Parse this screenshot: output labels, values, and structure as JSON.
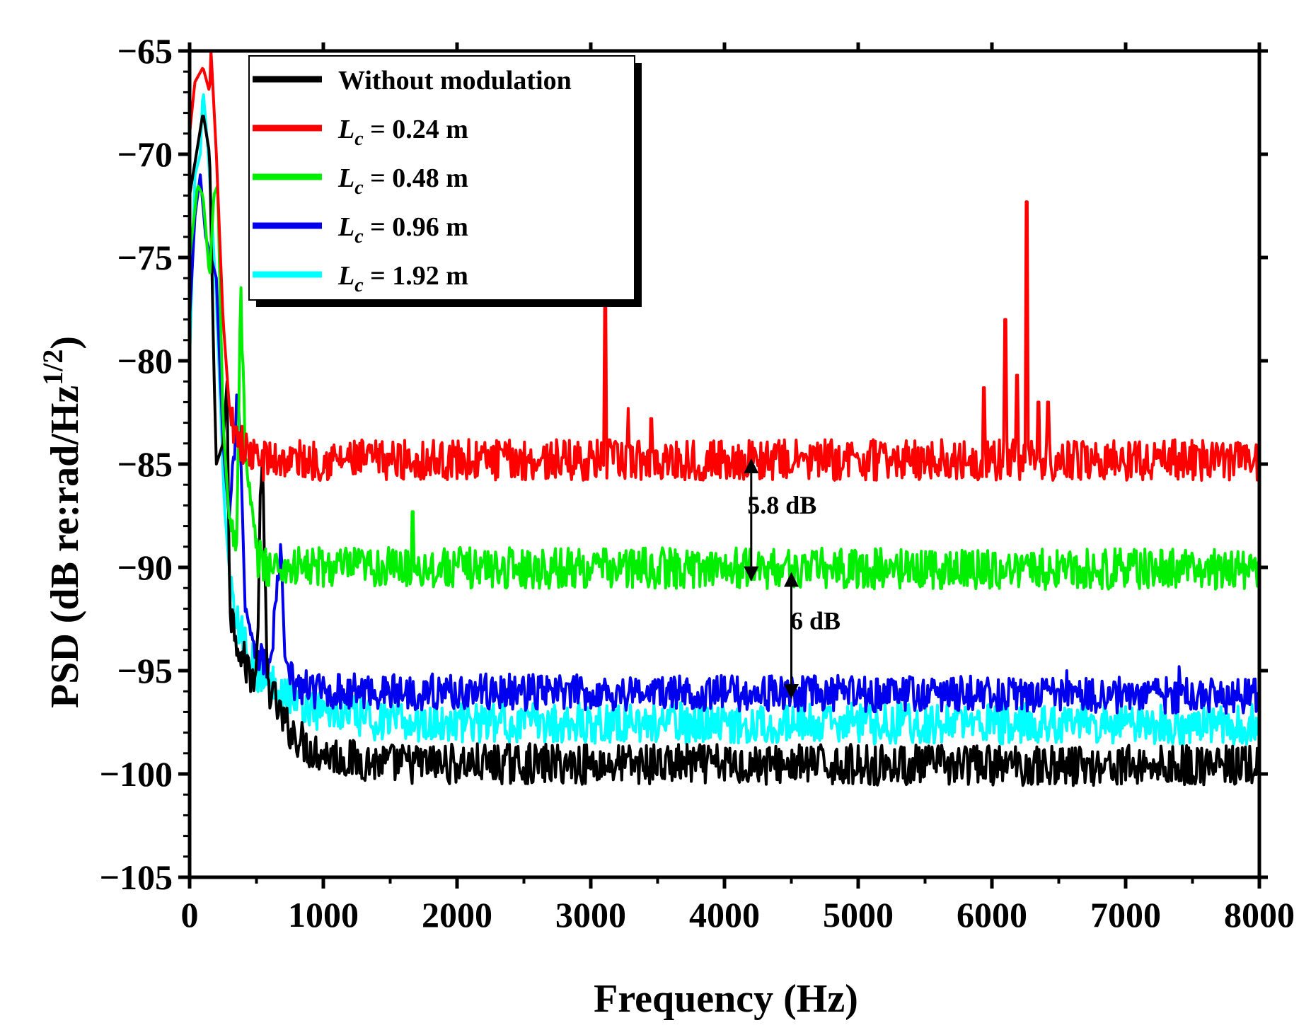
{
  "chart_data": {
    "type": "line",
    "title": "",
    "xlabel": "Frequency (Hz)",
    "ylabel": "PSD (dB re:rad/Hz",
    "ylabel_sup": "1/2",
    "ylabel_close": ")",
    "xlim": [
      0,
      8000
    ],
    "ylim": [
      -105,
      -65
    ],
    "xticks": [
      0,
      1000,
      2000,
      3000,
      4000,
      5000,
      6000,
      7000,
      8000
    ],
    "xtick_labels": [
      "0",
      "1000",
      "2000",
      "3000",
      "4000",
      "5000",
      "6000",
      "7000",
      "8000"
    ],
    "yticks": [
      -65,
      -70,
      -75,
      -80,
      -85,
      -90,
      -95,
      -100,
      -105
    ],
    "ytick_labels": [
      "−65",
      "−70",
      "−75",
      "−80",
      "−85",
      "−90",
      "−95",
      "−100",
      "−105"
    ],
    "legend_position": "top-left",
    "series": [
      {
        "name": "Without modulation",
        "legend_label": "Without modulation",
        "color": "#000000",
        "floor": -99.6,
        "noise": 0.45,
        "points": [
          [
            0,
            -72
          ],
          [
            50,
            -70
          ],
          [
            100,
            -68
          ],
          [
            150,
            -70
          ],
          [
            180,
            -80
          ],
          [
            200,
            -85
          ],
          [
            250,
            -84
          ],
          [
            280,
            -81
          ],
          [
            300,
            -92
          ],
          [
            400,
            -94.5
          ],
          [
            500,
            -95.5
          ],
          [
            540,
            -84
          ],
          [
            580,
            -95.5
          ],
          [
            700,
            -97.5
          ],
          [
            900,
            -98.8
          ],
          [
            1200,
            -99.3
          ],
          [
            1500,
            -99.5
          ],
          [
            8000,
            -99.6
          ]
        ],
        "peaks": []
      },
      {
        "name": "Lc = 0.24 m",
        "legend_symbol": "L",
        "legend_sub": "c",
        "legend_value": " = 0.24 m",
        "color": "#ff0000",
        "floor": -84.8,
        "noise": 0.45,
        "points": [
          [
            0,
            -69
          ],
          [
            40,
            -66.5
          ],
          [
            100,
            -65.8
          ],
          [
            150,
            -67
          ],
          [
            160,
            -65
          ],
          [
            200,
            -70
          ],
          [
            250,
            -78
          ],
          [
            300,
            -82.5
          ],
          [
            400,
            -84.2
          ],
          [
            500,
            -84.8
          ],
          [
            8000,
            -84.8
          ]
        ],
        "peaks": [
          [
            3110,
            -77
          ],
          [
            3280,
            -82.3
          ],
          [
            3450,
            -82.8
          ],
          [
            5940,
            -81.3
          ],
          [
            6100,
            -78
          ],
          [
            6190,
            -80.7
          ],
          [
            6260,
            -72.3
          ],
          [
            6350,
            -82
          ],
          [
            6420,
            -82
          ],
          [
            7550,
            -84.3
          ]
        ]
      },
      {
        "name": "Lc = 0.48 m",
        "legend_symbol": "L",
        "legend_sub": "c",
        "legend_value": " = 0.48 m",
        "color": "#00ee00",
        "floor": -90.1,
        "noise": 0.45,
        "points": [
          [
            0,
            -75
          ],
          [
            60,
            -71.5
          ],
          [
            100,
            -72
          ],
          [
            150,
            -76
          ],
          [
            180,
            -72
          ],
          [
            210,
            -71.5
          ],
          [
            250,
            -83
          ],
          [
            300,
            -88
          ],
          [
            350,
            -89
          ],
          [
            380,
            -76.5
          ],
          [
            420,
            -85
          ],
          [
            500,
            -89.5
          ],
          [
            600,
            -90
          ],
          [
            8000,
            -90.1
          ]
        ],
        "peaks": [
          [
            1665,
            -87.3
          ],
          [
            3900,
            -89.3
          ]
        ]
      },
      {
        "name": "Lc = 0.96 m",
        "legend_symbol": "L",
        "legend_sub": "c",
        "legend_value": " = 0.96 m",
        "color": "#0000ee",
        "floor": -96.2,
        "noise": 0.4,
        "points": [
          [
            0,
            -78
          ],
          [
            40,
            -73
          ],
          [
            80,
            -71
          ],
          [
            120,
            -74
          ],
          [
            200,
            -76
          ],
          [
            250,
            -84
          ],
          [
            300,
            -88
          ],
          [
            360,
            -81.2
          ],
          [
            420,
            -92
          ],
          [
            500,
            -94
          ],
          [
            600,
            -95
          ],
          [
            680,
            -89.3
          ],
          [
            720,
            -95
          ],
          [
            800,
            -95.8
          ],
          [
            1000,
            -96
          ],
          [
            8000,
            -96.2
          ]
        ],
        "peaks": [
          [
            7400,
            -94.8
          ],
          [
            6560,
            -95
          ]
        ]
      },
      {
        "name": "Lc = 1.92 m",
        "legend_symbol": "L",
        "legend_sub": "c",
        "legend_value": " = 1.92 m",
        "color": "#00ffff",
        "floor": -97.6,
        "noise": 0.45,
        "points": [
          [
            0,
            -80
          ],
          [
            40,
            -71
          ],
          [
            80,
            -70
          ],
          [
            100,
            -66.8
          ],
          [
            140,
            -70
          ],
          [
            200,
            -77
          ],
          [
            260,
            -87
          ],
          [
            320,
            -92
          ],
          [
            400,
            -93.5
          ],
          [
            500,
            -95
          ],
          [
            700,
            -96
          ],
          [
            900,
            -96.8
          ],
          [
            1200,
            -97.2
          ],
          [
            1500,
            -97.5
          ],
          [
            8000,
            -97.6
          ]
        ],
        "peaks": []
      }
    ],
    "annotations": [
      {
        "text": "5.8 dB",
        "x": 4200,
        "y1": -84.8,
        "y2": -90.6,
        "label_x": 4430,
        "label_y": -87.4
      },
      {
        "text": "6 dB",
        "x": 4500,
        "y1": -90.3,
        "y2": -96.3,
        "label_x": 4680,
        "label_y": -93.0
      }
    ]
  }
}
